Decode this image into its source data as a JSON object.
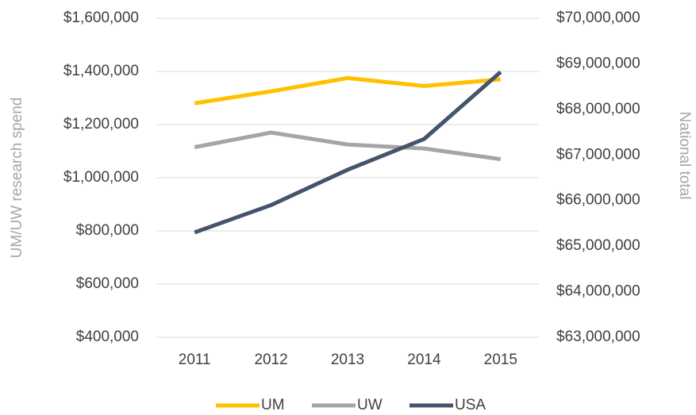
{
  "chart_data": {
    "type": "line",
    "categories": [
      "2011",
      "2012",
      "2013",
      "2014",
      "2015"
    ],
    "series": [
      {
        "name": "UM",
        "color": "#ffc000",
        "values": [
          1280000,
          1325000,
          1375000,
          1345000,
          1370000
        ]
      },
      {
        "name": "UW",
        "color": "#a5a5a5",
        "values": [
          1115000,
          1170000,
          1125000,
          1110000,
          1070000
        ]
      },
      {
        "name": "USA",
        "color": "#44546a",
        "axis": "y2",
        "values": [
          65300000,
          65900000,
          66675000,
          67350000,
          68820000
        ]
      }
    ],
    "y_label": "UM/UW research spend",
    "y2_label": "National total",
    "ylim": [
      400000,
      1600000
    ],
    "yticks": [
      {
        "value": 400000,
        "label": "$400,000"
      },
      {
        "value": 600000,
        "label": "$600,000"
      },
      {
        "value": 800000,
        "label": "$800,000"
      },
      {
        "value": 1000000,
        "label": "$1,000,000"
      },
      {
        "value": 1200000,
        "label": "$1,200,000"
      },
      {
        "value": 1400000,
        "label": "$1,400,000"
      },
      {
        "value": 1600000,
        "label": "$1,600,000"
      }
    ],
    "y2lim": [
      63000000,
      70000000
    ],
    "y2ticks": [
      {
        "value": 63000000,
        "label": "$63,000,000"
      },
      {
        "value": 64000000,
        "label": "$64,000,000"
      },
      {
        "value": 65000000,
        "label": "$65,000,000"
      },
      {
        "value": 66000000,
        "label": "$66,000,000"
      },
      {
        "value": 67000000,
        "label": "$67,000,000"
      },
      {
        "value": 68000000,
        "label": "$68,000,000"
      },
      {
        "value": 69000000,
        "label": "$69,000,000"
      },
      {
        "value": 70000000,
        "label": "$70,000,000"
      }
    ],
    "grid": true,
    "legend": "bottom"
  }
}
